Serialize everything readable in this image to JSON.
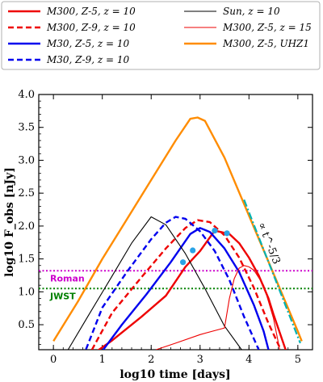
{
  "chart_data": {
    "type": "line",
    "xlabel": "log10 time [days]",
    "ylabel": "log10 F_obs [nJy]",
    "xlim": [
      -0.3,
      5.3
    ],
    "ylim": [
      0.12,
      4.0
    ],
    "x_ticks": [
      "0",
      "1",
      "2",
      "3",
      "4",
      "5"
    ],
    "y_ticks": [
      "0.5",
      "1.0",
      "1.5",
      "2.0",
      "2.5",
      "3.0",
      "3.5",
      "4.0"
    ],
    "x_tick_values": [
      0,
      1,
      2,
      3,
      4,
      5
    ],
    "y_tick_values": [
      0.5,
      1.0,
      1.5,
      2.0,
      2.5,
      3.0,
      3.5,
      4.0
    ],
    "grid": false,
    "legend_position": "top (above plot)",
    "legend_columns": [
      [
        "M300, Z-5, z = 10",
        "M300, Z-9, z = 10",
        "M30, Z-5, z = 10",
        "M30, Z-9, z = 10"
      ],
      [
        "Sun, z = 10",
        "M300, Z-5, z = 15",
        "M300, Z-5, UHZ1"
      ]
    ],
    "series": [
      {
        "name": "M300, Z-5, z = 10",
        "color": "#ee0000",
        "style": "solid",
        "width": 2.4,
        "x": [
          0.7,
          1.2,
          1.8,
          2.3,
          2.7,
          3.0,
          3.3,
          3.6,
          3.8,
          4.0,
          4.2,
          4.4,
          4.5,
          4.75
        ],
        "y": [
          0.0,
          0.26,
          0.62,
          0.94,
          1.38,
          1.62,
          1.93,
          1.88,
          1.74,
          1.52,
          1.25,
          0.9,
          0.66,
          0.12
        ]
      },
      {
        "name": "M300, Z-9, z = 10",
        "color": "#ee0000",
        "style": "dashed",
        "width": 2.4,
        "x": [
          0.7,
          1.2,
          1.8,
          2.3,
          2.7,
          2.95,
          3.2,
          3.5,
          3.8,
          4.1,
          4.4,
          4.65
        ],
        "y": [
          0.0,
          0.68,
          1.22,
          1.66,
          1.97,
          2.09,
          2.06,
          1.86,
          1.52,
          1.06,
          0.52,
          0.12
        ]
      },
      {
        "name": "M30, Z-5, z = 10",
        "color": "#0000ee",
        "style": "solid",
        "width": 2.4,
        "x": [
          0.9,
          1.4,
          1.9,
          2.4,
          2.8,
          3.0,
          3.2,
          3.5,
          3.8,
          4.1,
          4.3,
          4.4
        ],
        "y": [
          0.0,
          0.5,
          0.96,
          1.45,
          1.88,
          1.97,
          1.91,
          1.66,
          1.3,
          0.8,
          0.4,
          0.12
        ]
      },
      {
        "name": "M30, Z-9, z = 10",
        "color": "#0000ee",
        "style": "dashed",
        "width": 2.4,
        "x": [
          0.6,
          1.0,
          1.5,
          2.0,
          2.3,
          2.5,
          2.7,
          3.0,
          3.3,
          3.6,
          3.9,
          4.2
        ],
        "y": [
          0.0,
          0.76,
          1.3,
          1.8,
          2.05,
          2.14,
          2.11,
          1.92,
          1.62,
          1.18,
          0.62,
          0.12
        ]
      },
      {
        "name": "Sun, z = 10",
        "color": "#000000",
        "style": "solid",
        "width": 1.1,
        "x": [
          0.3,
          0.7,
          1.2,
          1.6,
          2.0,
          2.3,
          2.7,
          3.1,
          3.5,
          3.85
        ],
        "y": [
          0.12,
          0.62,
          1.24,
          1.74,
          2.14,
          2.02,
          1.58,
          1.05,
          0.48,
          0.12
        ]
      },
      {
        "name": "M300, Z-5, z = 15",
        "color": "#ee0000",
        "style": "solid",
        "width": 1.1,
        "x": [
          2.1,
          2.5,
          3.0,
          3.5,
          3.6,
          3.7,
          3.8,
          3.9,
          4.0,
          4.1,
          4.3,
          4.5,
          4.63
        ],
        "y": [
          0.12,
          0.22,
          0.35,
          0.45,
          0.9,
          1.2,
          1.36,
          1.4,
          1.38,
          1.33,
          1.1,
          0.6,
          0.12
        ]
      },
      {
        "name": "M300, Z-5, UHZ1",
        "color": "#ff8c00",
        "style": "solid",
        "width": 2.4,
        "x": [
          0.0,
          0.5,
          1.0,
          1.5,
          2.0,
          2.5,
          2.8,
          2.95,
          3.1,
          3.5,
          4.0,
          4.5,
          5.0,
          5.08
        ],
        "y": [
          0.25,
          0.85,
          1.5,
          2.1,
          2.7,
          3.3,
          3.63,
          3.65,
          3.6,
          3.04,
          2.16,
          1.28,
          0.4,
          0.25
        ]
      }
    ],
    "markers": {
      "color": "#29a3e6",
      "x": [
        2.65,
        2.85,
        3.3,
        3.55
      ],
      "y": [
        1.45,
        1.63,
        1.93,
        1.89
      ]
    },
    "reference_lines": [
      {
        "label": "Roman",
        "y": 1.32,
        "color": "#cc00cc"
      },
      {
        "label": "JWST",
        "y": 1.05,
        "color": "#008000"
      }
    ],
    "slope_guide": {
      "label": "∝ t^-5/3",
      "color": "#00b3b3",
      "x": [
        3.9,
        5.05
      ],
      "y": [
        2.4,
        0.22
      ]
    }
  }
}
